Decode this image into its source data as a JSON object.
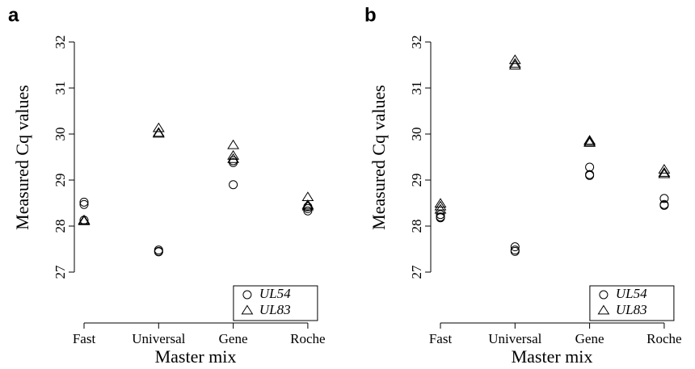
{
  "chart_data": [
    {
      "type": "scatter",
      "panel_label": "a",
      "xlabel": "Master mix",
      "ylabel": "Measured Cq values",
      "categories": [
        "Fast",
        "Universal",
        "Gene",
        "Roche"
      ],
      "ylim": [
        27,
        32
      ],
      "yticks": [
        27,
        28,
        29,
        30,
        31,
        32
      ],
      "series": [
        {
          "name": "UL54",
          "marker": "circle",
          "color": "#000000",
          "values": [
            [
              28.52,
              28.47,
              28.13
            ],
            [
              27.48,
              27.45,
              27.44
            ],
            [
              29.42,
              29.38,
              28.9
            ],
            [
              28.42,
              28.38,
              28.33
            ]
          ]
        },
        {
          "name": "UL83",
          "marker": "triangle",
          "color": "#000000",
          "values": [
            [
              28.12,
              28.11,
              28.1
            ],
            [
              30.12,
              30.02,
              30.0
            ],
            [
              29.75,
              29.52,
              29.45
            ],
            [
              28.62,
              28.45,
              28.42
            ]
          ]
        }
      ],
      "legend": "lower right"
    },
    {
      "type": "scatter",
      "panel_label": "b",
      "xlabel": "Master mix",
      "ylabel": "Measured Cq values",
      "categories": [
        "Fast",
        "Universal",
        "Gene",
        "Roche"
      ],
      "ylim": [
        27,
        32
      ],
      "yticks": [
        27,
        28,
        29,
        30,
        31,
        32
      ],
      "series": [
        {
          "name": "UL54",
          "marker": "circle",
          "color": "#000000",
          "values": [
            [
              28.25,
              28.2,
              28.18
            ],
            [
              27.55,
              27.48,
              27.45
            ],
            [
              29.28,
              29.12,
              29.1
            ],
            [
              28.6,
              28.47,
              28.45
            ]
          ]
        },
        {
          "name": "UL83",
          "marker": "triangle",
          "color": "#000000",
          "values": [
            [
              28.48,
              28.42,
              28.35
            ],
            [
              31.6,
              31.52,
              31.48
            ],
            [
              29.85,
              29.82,
              29.8
            ],
            [
              29.22,
              29.15,
              29.12
            ]
          ]
        }
      ],
      "legend": "lower right"
    }
  ]
}
